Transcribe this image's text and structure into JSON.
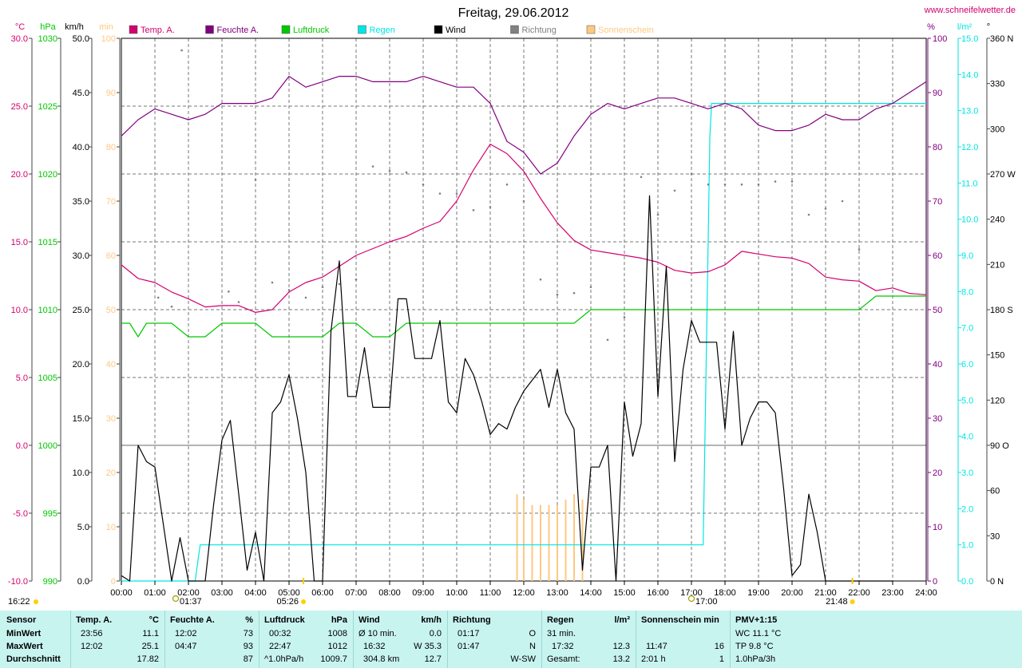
{
  "title": "Freitag, 29.06.2012",
  "website": "www.schneifelwetter.de",
  "colors": {
    "temp": "#d4006f",
    "humidity": "#800080",
    "pressure": "#00c800",
    "rain": "#00e5e5",
    "wind": "#000000",
    "direction": "#808080",
    "sunshine": "#ffc880",
    "stats_bg": "#c8f4f0"
  },
  "axis_units": {
    "temp": "°C",
    "pressure": "hPa",
    "wind": "km/h",
    "sunshine": "min",
    "humidity": "%",
    "rain": "l/m²",
    "direction": "°"
  },
  "legend": [
    {
      "label": "Temp. A.",
      "color": "#d4006f"
    },
    {
      "label": "Feuchte A.",
      "color": "#800080"
    },
    {
      "label": "Luftdruck",
      "color": "#00c800"
    },
    {
      "label": "Regen",
      "color": "#00e5e5"
    },
    {
      "label": "Wind",
      "color": "#000000"
    },
    {
      "label": "Richtung",
      "color": "#808080"
    },
    {
      "label": "Sonnenschein",
      "color": "#ffc880"
    }
  ],
  "chart_data": {
    "type": "line",
    "title": "Freitag, 29.06.2012",
    "xlabel": "",
    "ylabel": "",
    "x_ticks": [
      "00:00",
      "01:00",
      "02:00",
      "03:00",
      "04:00",
      "05:00",
      "06:00",
      "07:00",
      "08:00",
      "09:00",
      "10:00",
      "11:00",
      "12:00",
      "13:00",
      "14:00",
      "15:00",
      "16:00",
      "17:00",
      "18:00",
      "19:00",
      "20:00",
      "21:00",
      "22:00",
      "23:00",
      "24:00"
    ],
    "xlim_hours": [
      0,
      24
    ],
    "axes": {
      "temp": {
        "range": [
          -10,
          30
        ],
        "ticks": [
          "30.0",
          "25.0",
          "20.0",
          "15.0",
          "10.0",
          "5.0",
          "0.0",
          "-5.0",
          "-10.0"
        ]
      },
      "pressure": {
        "range": [
          990,
          1030
        ],
        "ticks": [
          "1030",
          "1025",
          "1020",
          "1015",
          "1010",
          "1005",
          "1000",
          "995",
          "990"
        ]
      },
      "wind": {
        "range": [
          0,
          50
        ],
        "ticks": [
          "50.0",
          "45.0",
          "40.0",
          "35.0",
          "30.0",
          "25.0",
          "20.0",
          "15.0",
          "10.0",
          "5.0",
          "0.0"
        ]
      },
      "sunshine": {
        "range": [
          0,
          100
        ],
        "ticks": [
          "100",
          "90",
          "80",
          "70",
          "60",
          "50",
          "40",
          "30",
          "20",
          "10",
          "0"
        ]
      },
      "humidity": {
        "range": [
          0,
          100
        ],
        "ticks": [
          "100",
          "90",
          "80",
          "70",
          "60",
          "50",
          "40",
          "30",
          "20",
          "10",
          "0"
        ]
      },
      "rain": {
        "range": [
          0,
          15
        ],
        "ticks": [
          "15.0",
          "14.0",
          "13.0",
          "12.0",
          "11.0",
          "10.0",
          "9.0",
          "8.0",
          "7.0",
          "6.0",
          "5.0",
          "4.0",
          "3.0",
          "2.0",
          "1.0",
          "0.0"
        ]
      },
      "direction": {
        "range": [
          0,
          360
        ],
        "ticks": [
          "360 N",
          "330",
          "300",
          "270 W",
          "240",
          "210",
          "180 S",
          "150",
          "120",
          "90 O",
          "60",
          "30",
          "0 N"
        ]
      }
    },
    "grid": true,
    "series": [
      {
        "name": "Temp. A.",
        "axis": "temp",
        "x": [
          0,
          0.5,
          1,
          1.5,
          2,
          2.5,
          3,
          3.5,
          4,
          4.5,
          5,
          5.5,
          6,
          6.5,
          7,
          7.5,
          8,
          8.5,
          9,
          9.5,
          10,
          10.5,
          11,
          11.5,
          12,
          12.5,
          13,
          13.5,
          14,
          14.5,
          15,
          15.5,
          16,
          16.5,
          17,
          17.5,
          18,
          18.5,
          19,
          19.5,
          20,
          20.5,
          21,
          21.5,
          22,
          22.5,
          23,
          23.5,
          24
        ],
        "y": [
          13.3,
          12.3,
          12,
          11.3,
          10.8,
          10.2,
          10.3,
          10.3,
          9.8,
          10,
          11.3,
          12,
          12.4,
          13.2,
          14,
          14.5,
          15,
          15.4,
          16,
          16.5,
          18,
          20.3,
          22.2,
          21.5,
          20.2,
          18.2,
          16.4,
          15.1,
          14.4,
          14.2,
          14,
          13.8,
          13.5,
          12.9,
          12.7,
          12.8,
          13.3,
          14.3,
          14.1,
          13.9,
          13.8,
          13.4,
          12.4,
          12.2,
          12.1,
          11.4,
          11.6,
          11.2,
          11.1
        ]
      },
      {
        "name": "Feuchte A.",
        "axis": "humidity",
        "x": [
          0,
          0.5,
          1,
          1.5,
          2,
          2.5,
          3,
          3.5,
          4,
          4.5,
          5,
          5.5,
          6,
          6.5,
          7,
          7.5,
          8,
          8.5,
          9,
          9.5,
          10,
          10.5,
          11,
          11.5,
          12,
          12.5,
          13,
          13.5,
          14,
          14.5,
          15,
          15.5,
          16,
          16.5,
          17,
          17.5,
          18,
          18.5,
          19,
          19.5,
          20,
          20.5,
          21,
          21.5,
          22,
          22.5,
          23,
          23.5,
          24
        ],
        "y": [
          82,
          85,
          87,
          86,
          85,
          86,
          88,
          88,
          88,
          89,
          93,
          91,
          92,
          93,
          93,
          92,
          92,
          92,
          93,
          92,
          91,
          91,
          88,
          81,
          79,
          75,
          77,
          82,
          86,
          88,
          87,
          88,
          89,
          89,
          88,
          87,
          88,
          87,
          84,
          83,
          83,
          84,
          86,
          85,
          85,
          87,
          88,
          90,
          92
        ]
      },
      {
        "name": "Luftdruck",
        "axis": "pressure",
        "x": [
          0,
          0.25,
          0.5,
          0.75,
          1,
          1.5,
          2,
          2.5,
          3,
          3.5,
          4,
          4.5,
          5,
          5.5,
          6,
          6.5,
          7,
          7.5,
          8,
          8.5,
          9,
          9.5,
          10,
          10.5,
          11,
          11.5,
          12,
          12.5,
          13,
          13.5,
          14,
          14.5,
          15,
          15.5,
          16,
          16.5,
          17,
          17.5,
          18,
          18.5,
          19,
          19.5,
          20,
          20.5,
          21,
          21.5,
          22,
          22.5,
          23,
          23.5,
          24
        ],
        "y": [
          1009,
          1009,
          1008,
          1009,
          1009,
          1009,
          1008,
          1008,
          1009,
          1009,
          1009,
          1008,
          1008,
          1008,
          1008,
          1009,
          1009,
          1008,
          1008,
          1009,
          1009,
          1009,
          1009,
          1009,
          1009,
          1009,
          1009,
          1009,
          1009,
          1009,
          1010,
          1010,
          1010,
          1010,
          1010,
          1010,
          1010,
          1010,
          1010,
          1010,
          1010,
          1010,
          1010,
          1010,
          1010,
          1010,
          1010,
          1011,
          1011,
          1011,
          1011
        ]
      },
      {
        "name": "Regen",
        "axis": "rain",
        "x": [
          0,
          2.2,
          2.35,
          17.25,
          17.35,
          17.55,
          17.6,
          24
        ],
        "y": [
          0,
          0,
          1,
          1,
          1,
          12.3,
          13.2,
          13.2
        ]
      },
      {
        "name": "Wind",
        "axis": "wind",
        "x": [
          0,
          0.25,
          0.5,
          0.75,
          1,
          1.5,
          1.75,
          2,
          2.25,
          2.5,
          2.75,
          3,
          3.25,
          3.5,
          3.75,
          4,
          4.25,
          4.5,
          4.75,
          5,
          5.25,
          5.5,
          5.75,
          6,
          6.25,
          6.5,
          6.75,
          7,
          7.25,
          7.5,
          7.75,
          8,
          8.25,
          8.5,
          8.75,
          9,
          9.25,
          9.5,
          9.75,
          10,
          10.25,
          10.5,
          10.75,
          11,
          11.25,
          11.5,
          11.75,
          12,
          12.25,
          12.5,
          12.75,
          13,
          13.25,
          13.5,
          13.75,
          14,
          14.25,
          14.5,
          14.75,
          15,
          15.25,
          15.5,
          15.75,
          16,
          16.25,
          16.5,
          16.75,
          17,
          17.25,
          17.5,
          17.75,
          18,
          18.25,
          18.5,
          18.75,
          19,
          19.25,
          19.5,
          19.75,
          20,
          20.25,
          20.5,
          20.75,
          21,
          21.25,
          21.5,
          21.75,
          22,
          22.25,
          22.5,
          22.75,
          23
        ],
        "y": [
          0.5,
          0,
          12.5,
          11,
          10.5,
          0,
          4,
          0,
          0,
          0,
          7,
          13,
          14.8,
          8,
          1,
          4.5,
          0,
          15.5,
          16.5,
          19,
          15,
          10,
          0,
          0,
          23,
          29.5,
          17,
          17,
          21.5,
          16,
          16,
          16,
          26,
          26,
          20.5,
          20.5,
          20.5,
          24,
          16.5,
          15.5,
          20.5,
          19,
          16.5,
          13.5,
          14.5,
          14,
          16,
          17.5,
          18.5,
          19.5,
          16,
          19.5,
          15.5,
          14,
          1,
          10.5,
          10.5,
          12.5,
          0,
          16.5,
          11.5,
          14.5,
          35.5,
          17,
          29,
          11,
          19.5,
          24,
          22,
          22,
          22,
          14,
          23,
          12.5,
          15,
          16.5,
          16.5,
          15.5,
          8.5,
          0.5,
          1.5,
          8,
          4.5,
          0,
          0,
          0,
          0,
          0,
          0,
          0,
          0,
          0
        ]
      },
      {
        "name": "Richtung",
        "axis": "direction",
        "x": [
          1.1,
          1.5,
          1.8,
          3.2,
          3.5,
          4,
          4.5,
          5,
          5.5,
          6,
          6.5,
          7,
          7.5,
          8,
          8.5,
          9,
          9.5,
          10,
          10.5,
          11,
          11.5,
          12,
          12.5,
          13,
          13.5,
          14,
          14.5,
          15,
          15.5,
          16,
          16.5,
          17,
          17.5,
          18,
          18.5,
          19,
          19.5,
          20,
          20.5,
          21,
          21.5,
          22
        ],
        "y": [
          188,
          182,
          352,
          192,
          185,
          266,
          198,
          193,
          188,
          195,
          197,
          200,
          275,
          272,
          271,
          263,
          257,
          257,
          246,
          248,
          263,
          252,
          200,
          190,
          191,
          195,
          160,
          175,
          268,
          243,
          259,
          270,
          263,
          263,
          263,
          263,
          265,
          265,
          243,
          247,
          252,
          220
        ],
        "marker": "dot"
      },
      {
        "name": "Sonnenschein",
        "axis": "sunshine",
        "x": [
          11.8,
          12,
          12.25,
          12.5,
          12.75,
          13,
          13.25,
          13.5,
          13.75
        ],
        "y": [
          16,
          15,
          14,
          14,
          14,
          14,
          15,
          16,
          15
        ],
        "style": "bars"
      }
    ],
    "time_markers": [
      {
        "label": "16:22",
        "kind": "sunset_prev"
      },
      {
        "label": "01:37",
        "kind": "moon"
      },
      {
        "label": "05:26",
        "kind": "sunrise"
      },
      {
        "label": "17:00",
        "kind": "moon"
      },
      {
        "label": "21:48",
        "kind": "sunset"
      }
    ]
  },
  "stats": {
    "sensor": {
      "header": "Sensor",
      "rows": [
        "MinWert",
        "MaxWert",
        "Durchschnitt"
      ]
    },
    "temp": {
      "header": "Temp. A.",
      "unit": "°C",
      "rows": [
        [
          "23:56",
          "11.1"
        ],
        [
          "12:02",
          "25.1"
        ],
        [
          "",
          "17.82"
        ]
      ]
    },
    "humidity": {
      "header": "Feuchte A.",
      "unit": "%",
      "rows": [
        [
          "12:02",
          "73"
        ],
        [
          "04:47",
          "93"
        ],
        [
          "",
          "87"
        ]
      ]
    },
    "pressure": {
      "header": "Luftdruck",
      "unit": "hPa",
      "rows": [
        [
          "00:32",
          "1008"
        ],
        [
          "22:47",
          "1012"
        ],
        [
          "^1.0hPa/h",
          "1009.7"
        ]
      ]
    },
    "wind": {
      "header": "Wind",
      "unit": "km/h",
      "rows": [
        [
          "Ø 10 min.",
          "0.0"
        ],
        [
          "16:32",
          "W 35.3"
        ],
        [
          "304.8 km",
          "12.7"
        ]
      ]
    },
    "direction": {
      "header": "Richtung",
      "unit": "",
      "rows": [
        [
          "01:17",
          "O"
        ],
        [
          "01:47",
          "N"
        ],
        [
          "",
          "W-SW"
        ]
      ]
    },
    "rain": {
      "header": "Regen",
      "unit": "l/m²",
      "rows": [
        [
          "31 min.",
          ""
        ],
        [
          "17:32",
          "12.3"
        ],
        [
          "Gesamt:",
          "13.2"
        ]
      ]
    },
    "sunshine": {
      "header": "Sonnenschein min",
      "unit": "",
      "rows": [
        [
          "",
          ""
        ],
        [
          "11:47",
          "16"
        ],
        [
          "2:01 h",
          "1"
        ]
      ]
    },
    "pmv": {
      "header": "PMV+1:15",
      "rows": [
        "WC 11.1 °C",
        "TP 9.8 °C",
        "1.0hPa/3h"
      ]
    }
  }
}
